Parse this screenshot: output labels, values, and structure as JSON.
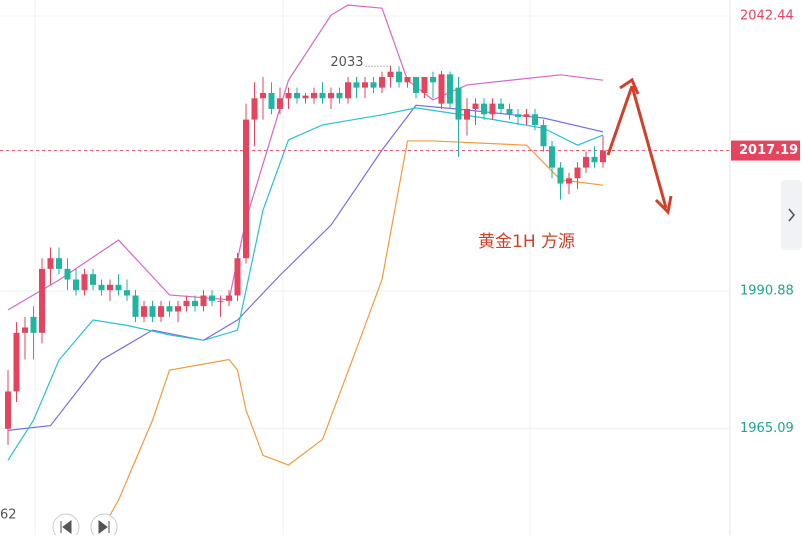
{
  "chart_data": {
    "type": "candlestick",
    "annotation": "黄金1H 方源",
    "low_label": "62",
    "up_color": "#e4455d",
    "down_color": "#1fb5a0",
    "ylim": [
      1945.07,
      2045.44
    ],
    "yticks": [
      1965.09,
      1990.88,
      2042.44
    ],
    "grid": true,
    "open": [
      1965,
      1972,
      1983,
      1986,
      1983,
      1995,
      1997,
      1995,
      1993,
      1991,
      1994,
      1992,
      1991,
      1992,
      1991,
      1990,
      1986,
      1988,
      1986,
      1988,
      1987,
      1988,
      1989,
      1988,
      1990,
      1989,
      1989,
      1990,
      1997,
      2023,
      2027,
      2028,
      2025,
      2027,
      2028,
      2027,
      2027,
      2028,
      2027,
      2028,
      2027,
      2030,
      2029,
      2030,
      2029,
      2031,
      2032,
      2030,
      2031,
      2028,
      2031,
      2026,
      2031.5,
      2029,
      2023,
      2025,
      2026,
      2024,
      2026,
      2025,
      2024,
      2023.5,
      2024,
      2022,
      2018,
      2014,
      2011,
      2012,
      2014,
      2016,
      2015
    ],
    "high": [
      1976,
      1985,
      1986,
      1988,
      1997,
      1999,
      1999,
      1997,
      1995,
      1995,
      1995,
      1993,
      1993,
      1994,
      1993,
      1991,
      1989,
      1989,
      1989,
      1989,
      1989,
      1990,
      1990,
      1991,
      1991,
      1990,
      1991,
      1998,
      2026,
      2030,
      2031,
      2030,
      2029,
      2029,
      2029,
      2028,
      2029,
      2030,
      2029,
      2029,
      2031,
      2031,
      2031,
      2031,
      2032,
      2033,
      2033,
      2031,
      2031,
      2031,
      2032,
      2032.13,
      2032,
      2031,
      2027,
      2027,
      2027,
      2027,
      2027,
      2026,
      2025,
      2025,
      2025,
      2023,
      2019,
      2015,
      2013,
      2015,
      2017,
      2018,
      2020
    ],
    "low": [
      1962,
      1970,
      1978,
      1978,
      1981,
      1992,
      1994,
      1991,
      1990,
      1990,
      1991,
      1990,
      1989,
      1990,
      1989,
      1985,
      1985,
      1985,
      1985,
      1986,
      1985,
      1987,
      1987,
      1987,
      1988,
      1986,
      1988,
      1989,
      1996,
      2018,
      2023,
      2024,
      2024,
      2025,
      2026,
      2026,
      2026,
      2026,
      2025,
      2026,
      2026,
      2027,
      2027,
      2028,
      2028,
      2029,
      2029,
      2029,
      2027,
      2027,
      2027,
      2025,
      2025,
      2016,
      2020,
      2022,
      2023,
      2023,
      2024,
      2023,
      2022,
      2022,
      2021,
      2017,
      2012,
      2008,
      2009,
      2010,
      2013,
      2014,
      2014
    ],
    "close": [
      1972,
      1983,
      1984,
      1983,
      1995,
      1997,
      1995,
      1993,
      1991,
      1994,
      1992,
      1991,
      1992,
      1991,
      1990,
      1986,
      1988,
      1986,
      1988,
      1987,
      1988,
      1989,
      1988,
      1990,
      1989,
      1989,
      1990,
      1997,
      2023,
      2027,
      2028,
      2025,
      2027,
      2028,
      2027,
      2027.5,
      2028,
      2027,
      2028,
      2027,
      2030,
      2029,
      2030,
      2029,
      2031,
      2032,
      2030,
      2031,
      2028,
      2031,
      2030,
      2031.5,
      2026,
      2023,
      2025,
      2026,
      2024,
      2026,
      2025,
      2024,
      2023.5,
      2024,
      2022,
      2018,
      2014,
      2011,
      2012,
      2014,
      2016,
      2015,
      2017.19
    ],
    "series": [
      {
        "name": "upper",
        "color": "#d667c8",
        "x": [
          0,
          6,
          13,
          19,
          26,
          28,
          33,
          38,
          40,
          44,
          47,
          50,
          54,
          65,
          70
        ],
        "values": [
          1987.3,
          1992.9,
          2000.4,
          1990.1,
          1989.2,
          2004.2,
          2030.4,
          2042.6,
          2044.5,
          2043.9,
          2030.4,
          2026.7,
          2029.5,
          2031.4,
          2030.4
        ]
      },
      {
        "name": "lower",
        "color": "#f59a3c",
        "x": [
          11,
          13,
          17,
          19,
          26,
          27,
          28,
          30,
          33,
          37,
          41,
          44,
          47,
          50,
          61,
          65,
          70
        ],
        "values": [
          1946,
          1951.6,
          1966.6,
          1976,
          1978,
          1976,
          1968.5,
          1960,
          1958.2,
          1963,
          1980,
          1993,
          2019,
          2019,
          2018.2,
          2011.7,
          2010.7
        ]
      },
      {
        "name": "ma-slow",
        "color": "#7b6fe0",
        "x": [
          0,
          5,
          11,
          17,
          23,
          27,
          32,
          38,
          44,
          48,
          54,
          63,
          70
        ],
        "values": [
          1964.7,
          1965.6,
          1977.9,
          1983.5,
          1981.6,
          1985.4,
          1993.8,
          2003.2,
          2017.3,
          2025.7,
          2024.8,
          2023.3,
          2020.7
        ]
      },
      {
        "name": "ma-fast",
        "color": "#26c2cf",
        "x": [
          0,
          3,
          6,
          10,
          14,
          19,
          23,
          27,
          30,
          33,
          37,
          44,
          48,
          56,
          63,
          67,
          70
        ],
        "values": [
          1959.1,
          1966.6,
          1977.9,
          1985.4,
          1984.4,
          1982.6,
          1981.6,
          1983.5,
          2006,
          2019.2,
          2022,
          2023.9,
          2025.2,
          2023.3,
          2021.4,
          2018.2,
          2020.1
        ]
      }
    ]
  }
}
